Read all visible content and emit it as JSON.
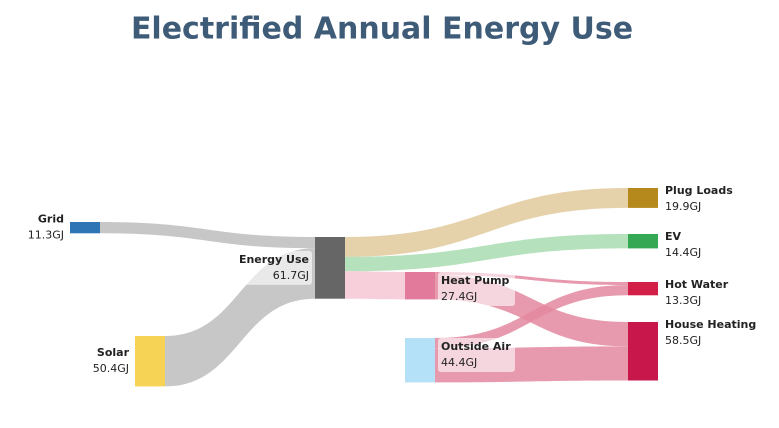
{
  "chart_data": {
    "type": "sankey",
    "title": "Electrified Annual Energy Use",
    "nodes": [
      {
        "name": "Grid",
        "value": 11.3,
        "value_label": "11.3GJ",
        "color": "#2e75b6"
      },
      {
        "name": "Solar",
        "value": 50.4,
        "value_label": "50.4GJ",
        "color": "#f6d255"
      },
      {
        "name": "Energy Use",
        "value": 61.7,
        "value_label": "61.7GJ",
        "color": "#666666"
      },
      {
        "name": "Heat Pump",
        "value": 27.4,
        "value_label": "27.4GJ",
        "color": "#e27a9c"
      },
      {
        "name": "Outside Air",
        "value": 44.4,
        "value_label": "44.4GJ",
        "color": "#b5e1f8"
      },
      {
        "name": "Plug Loads",
        "value": 19.9,
        "value_label": "19.9GJ",
        "color": "#b5891c"
      },
      {
        "name": "EV",
        "value": 14.4,
        "value_label": "14.4GJ",
        "color": "#34a853"
      },
      {
        "name": "Hot Water",
        "value": 13.3,
        "value_label": "13.3GJ",
        "color": "#d21f48"
      },
      {
        "name": "House Heating",
        "value": 58.5,
        "value_label": "58.5GJ",
        "color": "#c8174a"
      }
    ],
    "links": [
      {
        "source": 0,
        "target": 2,
        "value": 11.3,
        "color": "#bdbdbd"
      },
      {
        "source": 1,
        "target": 2,
        "value": 50.4,
        "color": "#bdbdbd"
      },
      {
        "source": 2,
        "target": 5,
        "value": 19.9,
        "color": "#e0c99b"
      },
      {
        "source": 2,
        "target": 6,
        "value": 14.4,
        "color": "#a9dcb2"
      },
      {
        "source": 2,
        "target": 3,
        "value": 27.4,
        "color": "#f5c7d3"
      },
      {
        "source": 3,
        "target": 7,
        "value": 3.0,
        "color": "#e3889f"
      },
      {
        "source": 3,
        "target": 8,
        "value": 24.4,
        "color": "#e3889f"
      },
      {
        "source": 4,
        "target": 7,
        "value": 10.3,
        "color": "#e3889f"
      },
      {
        "source": 4,
        "target": 8,
        "value": 34.1,
        "color": "#e3889f"
      }
    ]
  }
}
